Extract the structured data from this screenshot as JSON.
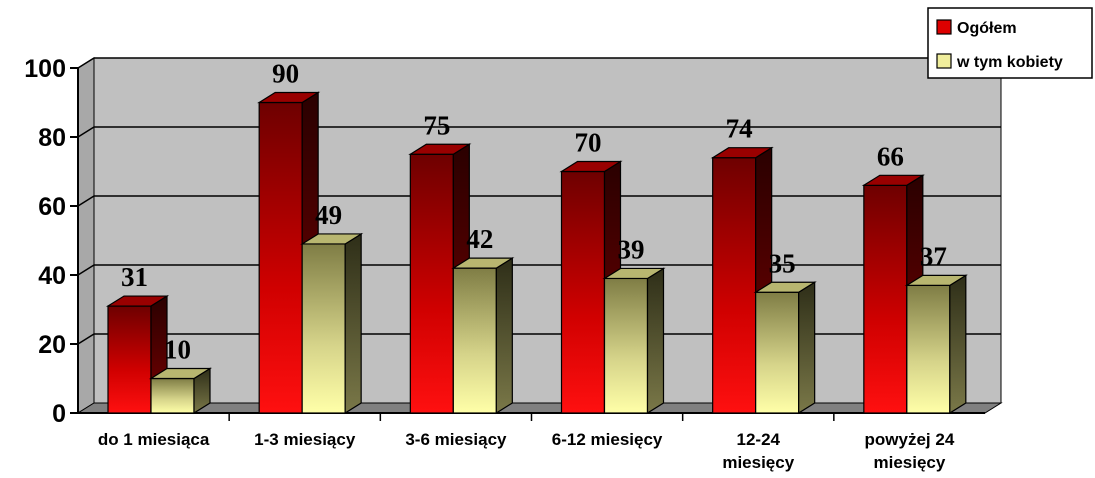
{
  "chart_data": {
    "type": "bar",
    "categories": [
      [
        "do 1 miesiąca"
      ],
      [
        "1-3 miesiący"
      ],
      [
        "3-6 miesiący"
      ],
      [
        "6-12 miesięcy"
      ],
      [
        "12-24",
        "miesięcy"
      ],
      [
        "powyżej 24",
        "miesięcy"
      ]
    ],
    "series": [
      {
        "name": "Ogółem",
        "values": [
          31,
          90,
          75,
          70,
          74,
          66
        ],
        "color": "#cc0000"
      },
      {
        "name": "w tym kobiety",
        "values": [
          10,
          49,
          42,
          39,
          35,
          37
        ],
        "color": "#e6e39a"
      }
    ],
    "y_ticks": [
      "0",
      "20",
      "40",
      "60",
      "80",
      "100"
    ],
    "ylim": [
      0,
      100
    ],
    "title": "",
    "xlabel": "",
    "ylabel": "",
    "grid": true,
    "legend_position": "top-right",
    "style": "3d-bar",
    "colors": {
      "wall": "#c0c0c0",
      "floor": "#808080",
      "grid": "#000000",
      "series1_light": "#ff1a1a",
      "series1_dark": "#7a0000",
      "series2_light": "#ffff99",
      "series2_dark": "#8a8a55"
    }
  }
}
